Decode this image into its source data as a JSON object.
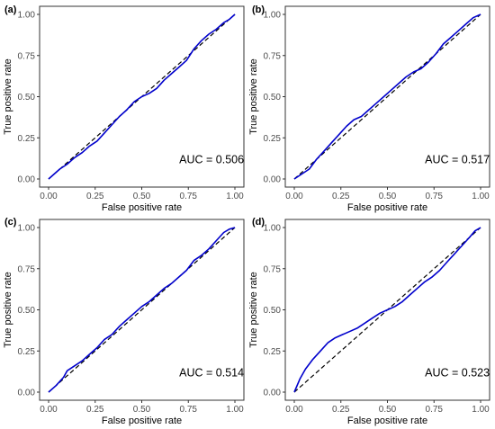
{
  "chart_data": [
    {
      "type": "line",
      "panel_label": "(a)",
      "xlabel": "False positive rate",
      "ylabel": "True positive rate",
      "xlim": [
        0,
        1
      ],
      "ylim": [
        0,
        1
      ],
      "xticks": [
        "0.00",
        "0.25",
        "0.50",
        "0.75",
        "1.00"
      ],
      "yticks": [
        "0.00",
        "0.25",
        "0.50",
        "0.75",
        "1.00"
      ],
      "annotation": "AUC = 0.506",
      "grid": false,
      "series": [
        {
          "style": "solid",
          "color": "#0000cc",
          "x": [
            0,
            0.03,
            0.06,
            0.1,
            0.14,
            0.18,
            0.22,
            0.26,
            0.3,
            0.34,
            0.38,
            0.42,
            0.46,
            0.5,
            0.54,
            0.58,
            0.62,
            0.66,
            0.7,
            0.74,
            0.78,
            0.82,
            0.86,
            0.9,
            0.94,
            0.97,
            1.0
          ],
          "y": [
            0,
            0.03,
            0.06,
            0.09,
            0.13,
            0.16,
            0.2,
            0.23,
            0.28,
            0.33,
            0.38,
            0.42,
            0.47,
            0.5,
            0.52,
            0.55,
            0.6,
            0.64,
            0.68,
            0.72,
            0.79,
            0.84,
            0.88,
            0.91,
            0.95,
            0.97,
            1.0
          ]
        },
        {
          "style": "dashed",
          "color": "#000000",
          "x": [
            0,
            1
          ],
          "y": [
            0,
            1
          ]
        }
      ]
    },
    {
      "type": "line",
      "panel_label": "(b)",
      "xlabel": "False positive rate",
      "ylabel": "True positive rate",
      "xlim": [
        0,
        1
      ],
      "ylim": [
        0,
        1
      ],
      "xticks": [
        "0.00",
        "0.25",
        "0.50",
        "0.75",
        "1.00"
      ],
      "yticks": [
        "0.00",
        "0.25",
        "0.50",
        "0.75",
        "1.00"
      ],
      "annotation": "AUC = 0.517",
      "grid": false,
      "series": [
        {
          "style": "solid",
          "color": "#0000cc",
          "x": [
            0,
            0.04,
            0.08,
            0.12,
            0.16,
            0.2,
            0.24,
            0.28,
            0.32,
            0.36,
            0.4,
            0.44,
            0.48,
            0.52,
            0.56,
            0.6,
            0.64,
            0.68,
            0.72,
            0.76,
            0.8,
            0.84,
            0.88,
            0.92,
            0.96,
            1.0
          ],
          "y": [
            0,
            0.03,
            0.06,
            0.12,
            0.17,
            0.22,
            0.27,
            0.32,
            0.36,
            0.38,
            0.42,
            0.46,
            0.5,
            0.54,
            0.58,
            0.62,
            0.65,
            0.67,
            0.71,
            0.76,
            0.82,
            0.86,
            0.9,
            0.94,
            0.98,
            1.0
          ]
        },
        {
          "style": "dashed",
          "color": "#000000",
          "x": [
            0,
            1
          ],
          "y": [
            0,
            1
          ]
        }
      ]
    },
    {
      "type": "line",
      "panel_label": "(c)",
      "xlabel": "False positive rate",
      "ylabel": "True positive rate",
      "xlim": [
        0,
        1
      ],
      "ylim": [
        0,
        1
      ],
      "xticks": [
        "0.00",
        "0.25",
        "0.50",
        "0.75",
        "1.00"
      ],
      "yticks": [
        "0.00",
        "0.25",
        "0.50",
        "0.75",
        "1.00"
      ],
      "annotation": "AUC = 0.514",
      "grid": false,
      "series": [
        {
          "style": "solid",
          "color": "#0000cc",
          "x": [
            0,
            0.04,
            0.08,
            0.1,
            0.14,
            0.18,
            0.22,
            0.26,
            0.3,
            0.34,
            0.38,
            0.42,
            0.46,
            0.5,
            0.54,
            0.58,
            0.62,
            0.66,
            0.7,
            0.74,
            0.78,
            0.82,
            0.86,
            0.9,
            0.94,
            0.97,
            1.0
          ],
          "y": [
            0,
            0.04,
            0.09,
            0.13,
            0.16,
            0.19,
            0.23,
            0.27,
            0.32,
            0.35,
            0.4,
            0.44,
            0.48,
            0.52,
            0.55,
            0.59,
            0.63,
            0.66,
            0.7,
            0.74,
            0.8,
            0.83,
            0.87,
            0.92,
            0.97,
            0.99,
            1.0
          ]
        },
        {
          "style": "dashed",
          "color": "#000000",
          "x": [
            0,
            1
          ],
          "y": [
            0,
            1
          ]
        }
      ]
    },
    {
      "type": "line",
      "panel_label": "(d)",
      "xlabel": "False positive rate",
      "ylabel": "True positive rate",
      "xlim": [
        0,
        1
      ],
      "ylim": [
        0,
        1
      ],
      "xticks": [
        "0.00",
        "0.25",
        "0.50",
        "0.75",
        "1.00"
      ],
      "yticks": [
        "0.00",
        "0.25",
        "0.50",
        "0.75",
        "1.00"
      ],
      "annotation": "AUC = 0.523",
      "grid": false,
      "series": [
        {
          "style": "solid",
          "color": "#0000cc",
          "x": [
            0,
            0.03,
            0.06,
            0.1,
            0.14,
            0.18,
            0.22,
            0.26,
            0.3,
            0.34,
            0.38,
            0.42,
            0.46,
            0.5,
            0.54,
            0.58,
            0.62,
            0.66,
            0.7,
            0.74,
            0.78,
            0.82,
            0.86,
            0.9,
            0.94,
            0.97,
            1.0
          ],
          "y": [
            0,
            0.08,
            0.14,
            0.2,
            0.25,
            0.3,
            0.33,
            0.35,
            0.37,
            0.39,
            0.42,
            0.45,
            0.48,
            0.5,
            0.52,
            0.55,
            0.59,
            0.63,
            0.67,
            0.7,
            0.74,
            0.79,
            0.84,
            0.89,
            0.94,
            0.98,
            1.0
          ]
        },
        {
          "style": "dashed",
          "color": "#000000",
          "x": [
            0,
            1
          ],
          "y": [
            0,
            1
          ]
        }
      ]
    }
  ]
}
